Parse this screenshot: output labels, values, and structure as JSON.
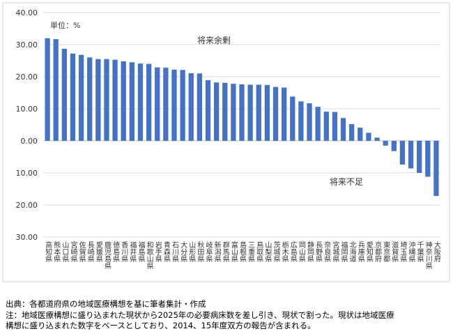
{
  "chart_data": {
    "type": "bar",
    "annotations": [
      "単位：%",
      "将来余剰",
      "将来不足"
    ],
    "categories": [
      "高知県",
      "熊本県",
      "山口県",
      "宮崎県",
      "佐賀県",
      "長崎県",
      "愛媛県",
      "鹿児島県",
      "徳島県",
      "香川県",
      "福井県",
      "福島県",
      "和歌山県",
      "岩手県",
      "青森県",
      "石川県",
      "大分県",
      "山形県",
      "秋田県",
      "岐阜県",
      "新潟県",
      "群馬県",
      "富山県",
      "島根県",
      "三重県",
      "鳥取県",
      "山梨県",
      "茨城県",
      "栃木県",
      "広島県",
      "岡山県",
      "静岡県",
      "長野県",
      "奈良県",
      "宮城県",
      "福岡県",
      "北海道",
      "兵庫県",
      "愛知県",
      "京都府",
      "東京都",
      "滋賀県",
      "埼玉県",
      "沖縄県",
      "千葉県",
      "神奈川県",
      "大阪府"
    ],
    "values": [
      32.0,
      31.7,
      28.7,
      27.2,
      26.8,
      26.0,
      25.5,
      25.5,
      25.3,
      24.8,
      24.5,
      24.1,
      24.0,
      22.9,
      22.8,
      22.2,
      22.1,
      21.1,
      21.0,
      18.9,
      18.2,
      18.1,
      17.8,
      17.6,
      17.5,
      17.5,
      17.4,
      16.8,
      16.6,
      13.8,
      12.3,
      11.7,
      10.6,
      9.1,
      9.0,
      7.1,
      5.2,
      4.1,
      2.5,
      1.0,
      -1.5,
      -3.2,
      -7.4,
      -8.6,
      -10.0,
      -11.2,
      -17.2
    ],
    "color": "#4472c4",
    "ylim": [
      -30,
      40
    ],
    "yticks": [
      {
        "value": -30,
        "label": "30.00"
      },
      {
        "value": -20,
        "label": "20.00"
      },
      {
        "value": -10,
        "label": "10.00"
      },
      {
        "value": 0,
        "label": "0.00"
      },
      {
        "value": 10,
        "label": "10.00"
      },
      {
        "value": 20,
        "label": "20.00"
      },
      {
        "value": 30,
        "label": "30.00"
      },
      {
        "value": 40,
        "label": "40.00"
      }
    ],
    "grid": true
  },
  "notes": [
    "出典：各都道府県の地域医療構想を基に筆者集計・作成",
    "注：地域医療構想に盛り込まれた現状から2025年の必要病床数を差し引き、現状で割った。現状は地域医療",
    "構想に盛り込まれた数字をベースとしており、2014、15年度双方の報告が含まれる。"
  ]
}
